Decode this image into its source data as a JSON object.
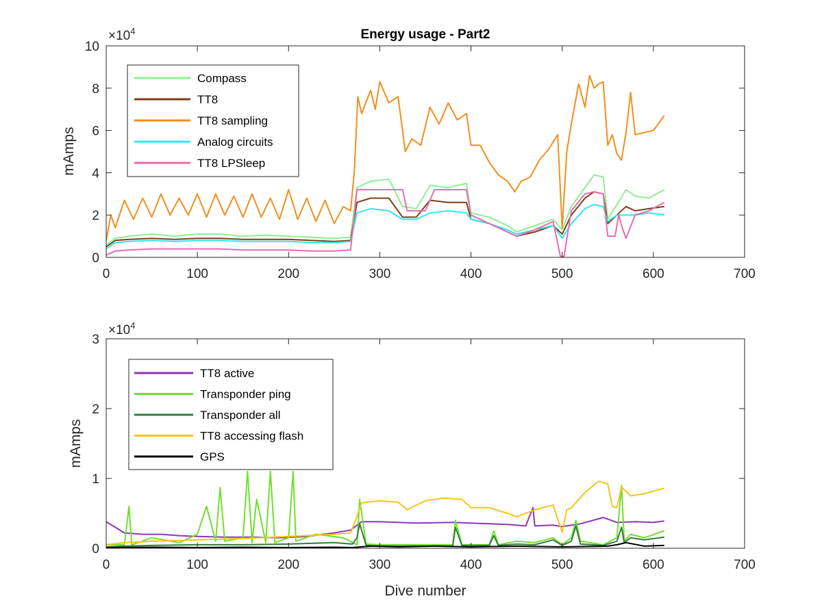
{
  "chart_data": [
    {
      "type": "line",
      "title": "Energy usage - Part2",
      "xlabel": "",
      "ylabel": "mAmps",
      "xlim": [
        0,
        700
      ],
      "ylim": [
        0,
        100000
      ],
      "xticks": [
        "0",
        "100",
        "200",
        "300",
        "400",
        "500",
        "600",
        "700"
      ],
      "yticks": [
        "0",
        "2",
        "4",
        "6",
        "8",
        "10"
      ],
      "y_exponent_label": "×10",
      "y_exponent_power": "4",
      "legend_position": "top-left",
      "grid": false,
      "series": [
        {
          "name": "Compass",
          "color": "#90ee90",
          "x": [
            0,
            10,
            25,
            50,
            75,
            100,
            125,
            150,
            175,
            200,
            225,
            250,
            268,
            275,
            290,
            310,
            325,
            340,
            355,
            375,
            395,
            400,
            420,
            440,
            450,
            470,
            490,
            500,
            510,
            525,
            535,
            545,
            550,
            560,
            570,
            580,
            595,
            612
          ],
          "y": [
            6000,
            9000,
            10000,
            11000,
            10000,
            11000,
            11000,
            10000,
            10500,
            10000,
            9500,
            9000,
            9500,
            33000,
            36000,
            37000,
            24000,
            23000,
            34000,
            33000,
            35000,
            21000,
            19000,
            15000,
            12000,
            15000,
            18000,
            13000,
            24000,
            33000,
            39000,
            38000,
            18000,
            25000,
            32000,
            29000,
            28000,
            32000
          ]
        },
        {
          "name": "TT8",
          "color": "#7b3f16",
          "x": [
            0,
            10,
            25,
            50,
            75,
            100,
            125,
            150,
            175,
            200,
            225,
            250,
            268,
            275,
            290,
            310,
            325,
            340,
            355,
            375,
            395,
            400,
            420,
            440,
            450,
            470,
            490,
            500,
            510,
            525,
            535,
            545,
            550,
            560,
            570,
            580,
            595,
            612
          ],
          "y": [
            5000,
            8000,
            8500,
            9000,
            8500,
            9000,
            9000,
            8500,
            8500,
            8500,
            8000,
            7500,
            8000,
            26000,
            28000,
            28000,
            19000,
            19000,
            27000,
            26000,
            26000,
            18000,
            16000,
            12000,
            10000,
            12000,
            15000,
            11000,
            20000,
            28000,
            31000,
            30000,
            16000,
            20000,
            24000,
            22000,
            23000,
            24000
          ]
        },
        {
          "name": "TT8 sampling",
          "color": "#f28e1c",
          "x": [
            0,
            5,
            10,
            20,
            30,
            40,
            50,
            60,
            70,
            80,
            90,
            100,
            110,
            120,
            130,
            140,
            150,
            160,
            170,
            180,
            190,
            200,
            210,
            220,
            230,
            240,
            250,
            260,
            268,
            272,
            276,
            280,
            290,
            295,
            300,
            310,
            320,
            328,
            335,
            345,
            355,
            365,
            375,
            385,
            395,
            400,
            410,
            420,
            430,
            440,
            448,
            455,
            465,
            475,
            485,
            495,
            500,
            505,
            510,
            518,
            525,
            530,
            535,
            540,
            545,
            550,
            555,
            560,
            565,
            570,
            575,
            580,
            590,
            600,
            612
          ],
          "y": [
            8000,
            20000,
            14000,
            27000,
            18000,
            28000,
            19000,
            30000,
            20000,
            28000,
            20000,
            30000,
            19000,
            30000,
            20000,
            29000,
            19000,
            30000,
            19000,
            28000,
            18000,
            32000,
            18000,
            28000,
            17000,
            27000,
            16000,
            24000,
            22000,
            40000,
            76000,
            68000,
            79000,
            70000,
            83000,
            73000,
            76000,
            50000,
            56000,
            53000,
            71000,
            63000,
            73000,
            65000,
            68000,
            53000,
            53000,
            45000,
            39000,
            36000,
            31000,
            36000,
            38000,
            46000,
            51000,
            58000,
            14000,
            50000,
            63000,
            82000,
            71000,
            86000,
            80000,
            82000,
            83000,
            53000,
            58000,
            49000,
            46000,
            59000,
            78000,
            58000,
            59000,
            60000,
            67000
          ]
        },
        {
          "name": "Analog circuits",
          "color": "#2ee8ec",
          "x": [
            0,
            10,
            25,
            50,
            75,
            100,
            125,
            150,
            175,
            200,
            225,
            250,
            268,
            275,
            290,
            310,
            325,
            340,
            355,
            375,
            395,
            400,
            420,
            440,
            450,
            470,
            490,
            500,
            510,
            525,
            535,
            545,
            550,
            560,
            570,
            580,
            595,
            612
          ],
          "y": [
            4000,
            7000,
            7500,
            8000,
            7500,
            8000,
            8000,
            7500,
            7500,
            7500,
            7000,
            7000,
            7500,
            21000,
            23000,
            22000,
            18000,
            18000,
            21000,
            22000,
            21000,
            18000,
            16000,
            13000,
            11000,
            13000,
            15000,
            9000,
            16000,
            23000,
            25000,
            24000,
            17000,
            20000,
            20000,
            20000,
            21000,
            20000
          ]
        },
        {
          "name": "TT8 LPSleep",
          "color": "#e86bb0",
          "x": [
            0,
            10,
            25,
            50,
            75,
            100,
            125,
            150,
            175,
            200,
            225,
            250,
            268,
            275,
            290,
            310,
            325,
            330,
            350,
            360,
            380,
            395,
            400,
            420,
            440,
            450,
            470,
            490,
            498,
            502,
            510,
            525,
            535,
            545,
            550,
            558,
            562,
            565,
            570,
            580,
            595,
            612
          ],
          "y": [
            1000,
            3000,
            3500,
            4000,
            4000,
            4000,
            4000,
            3500,
            3500,
            3500,
            3000,
            3000,
            3500,
            32000,
            32000,
            32000,
            32000,
            22000,
            22000,
            32000,
            32000,
            32000,
            20000,
            16000,
            12000,
            10000,
            13000,
            17000,
            500,
            500,
            22000,
            30000,
            31000,
            30000,
            10000,
            10000,
            20000,
            15000,
            9000,
            20000,
            22000,
            26000
          ]
        }
      ]
    },
    {
      "type": "line",
      "title": "",
      "xlabel": "Dive number",
      "ylabel": "mAmps",
      "xlim": [
        0,
        700
      ],
      "ylim": [
        0,
        30000
      ],
      "xticks": [
        "0",
        "100",
        "200",
        "300",
        "400",
        "500",
        "600",
        "700"
      ],
      "yticks": [
        "0",
        "1",
        "2",
        "3"
      ],
      "y_exponent_label": "×10",
      "y_exponent_power": "4",
      "legend_position": "top-left",
      "grid": false,
      "series": [
        {
          "name": "TT8 active",
          "color": "#8b35b8",
          "x": [
            0,
            10,
            20,
            40,
            60,
            80,
            100,
            130,
            160,
            190,
            220,
            250,
            268,
            280,
            300,
            340,
            380,
            400,
            420,
            440,
            460,
            468,
            470,
            490,
            500,
            520,
            545,
            560,
            580,
            600,
            612
          ],
          "y": [
            3800,
            3000,
            2200,
            2000,
            2000,
            1800,
            1700,
            1600,
            1600,
            1500,
            1700,
            2200,
            2600,
            3800,
            3800,
            3600,
            3700,
            3600,
            3500,
            3400,
            3200,
            5800,
            3200,
            3300,
            3100,
            3500,
            4400,
            3700,
            3800,
            3700,
            3900
          ]
        },
        {
          "name": "Transponder ping",
          "color": "#6ee02a",
          "x": [
            0,
            20,
            25,
            28,
            50,
            80,
            100,
            110,
            120,
            125,
            130,
            150,
            155,
            160,
            165,
            175,
            180,
            185,
            200,
            205,
            208,
            230,
            260,
            275,
            278,
            285,
            300,
            380,
            383,
            390,
            420,
            425,
            430,
            450,
            470,
            490,
            500,
            510,
            515,
            520,
            545,
            560,
            565,
            568,
            575,
            590,
            612
          ],
          "y": [
            500,
            500,
            6000,
            500,
            1500,
            800,
            2000,
            6000,
            1000,
            8700,
            1000,
            1500,
            11000,
            800,
            7000,
            800,
            11000,
            800,
            1500,
            11000,
            1000,
            2000,
            1500,
            500,
            7000,
            600,
            500,
            500,
            4000,
            500,
            500,
            2500,
            500,
            1000,
            800,
            1500,
            500,
            1500,
            4000,
            1000,
            500,
            1500,
            9000,
            1000,
            2000,
            1500,
            2500
          ]
        },
        {
          "name": "Transponder all",
          "color": "#2f7d3c",
          "x": [
            0,
            20,
            50,
            100,
            150,
            200,
            250,
            270,
            275,
            278,
            285,
            300,
            380,
            383,
            390,
            420,
            425,
            430,
            450,
            470,
            490,
            500,
            510,
            515,
            520,
            545,
            560,
            565,
            568,
            575,
            590,
            612
          ],
          "y": [
            200,
            300,
            400,
            500,
            500,
            600,
            800,
            600,
            1500,
            3500,
            400,
            300,
            300,
            3000,
            400,
            400,
            1800,
            400,
            600,
            500,
            1200,
            400,
            1000,
            3200,
            600,
            400,
            1000,
            3000,
            800,
            1500,
            1200,
            1600
          ]
        },
        {
          "name": "TT8 accessing flash",
          "color": "#f5c518",
          "x": [
            0,
            20,
            50,
            100,
            150,
            200,
            250,
            268,
            275,
            280,
            300,
            320,
            330,
            350,
            370,
            390,
            400,
            420,
            440,
            450,
            470,
            490,
            500,
            505,
            510,
            525,
            540,
            550,
            555,
            560,
            565,
            575,
            590,
            612
          ],
          "y": [
            500,
            800,
            1000,
            1200,
            1400,
            1700,
            2000,
            2200,
            4500,
            6500,
            6800,
            6600,
            5500,
            6800,
            7200,
            7000,
            5800,
            5800,
            5000,
            4500,
            5500,
            6200,
            2300,
            5500,
            5800,
            8000,
            9600,
            9200,
            6000,
            5800,
            8800,
            7500,
            7800,
            8600
          ]
        },
        {
          "name": "GPS",
          "color": "#000000",
          "x": [
            0,
            50,
            100,
            150,
            200,
            250,
            270,
            290,
            320,
            360,
            400,
            450,
            500,
            550,
            560,
            570,
            590,
            612
          ],
          "y": [
            100,
            150,
            100,
            150,
            100,
            150,
            100,
            300,
            200,
            300,
            200,
            300,
            200,
            300,
            500,
            800,
            300,
            400
          ]
        }
      ]
    }
  ]
}
